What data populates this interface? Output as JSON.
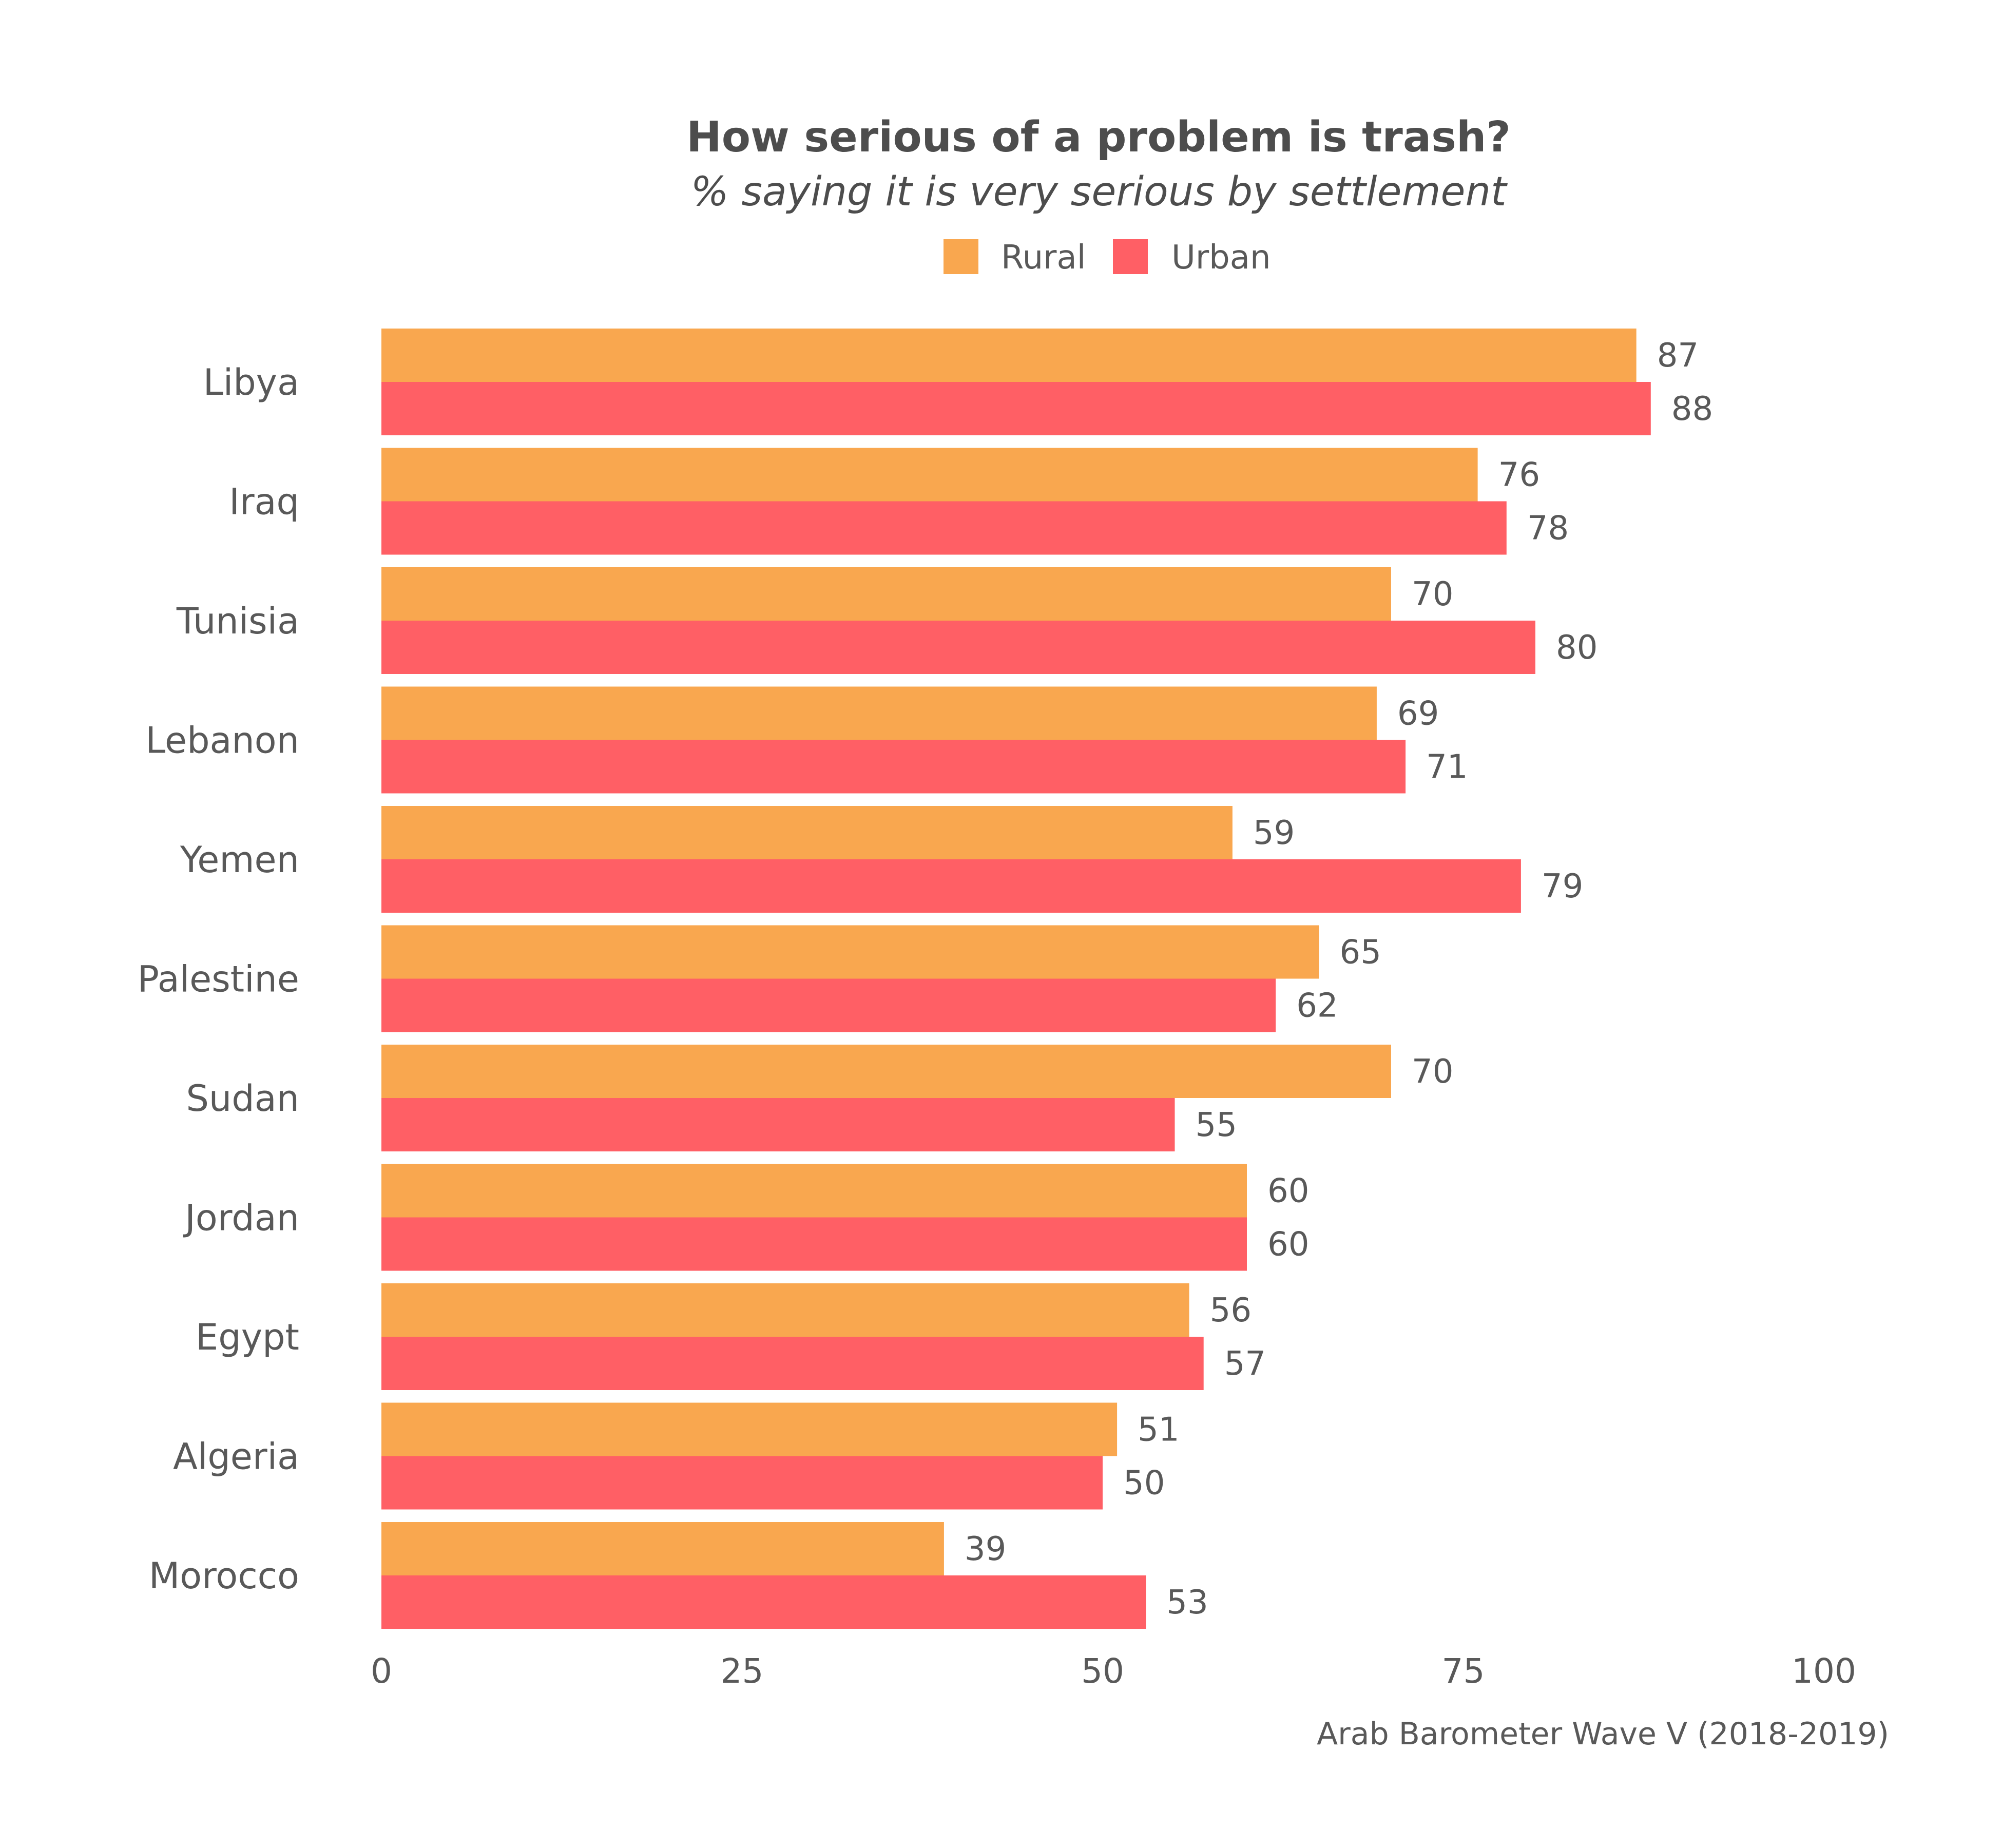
{
  "chart_data": {
    "type": "bar",
    "orientation": "horizontal",
    "title": "How serious of a problem is trash?",
    "subtitle": "% saying it is very serious by settlement",
    "caption": "Arab Barometer Wave V (2018-2019)",
    "categories": [
      "Libya",
      "Iraq",
      "Tunisia",
      "Lebanon",
      "Yemen",
      "Palestine",
      "Sudan",
      "Jordan",
      "Egypt",
      "Algeria",
      "Morocco"
    ],
    "series": [
      {
        "name": "Rural",
        "color": "#F9A74F",
        "values": [
          87,
          76,
          70,
          69,
          59,
          65,
          70,
          60,
          56,
          51,
          39
        ]
      },
      {
        "name": "Urban",
        "color": "#FF5F65",
        "values": [
          88,
          78,
          80,
          71,
          79,
          62,
          55,
          60,
          57,
          50,
          53
        ]
      }
    ],
    "xlim": [
      0,
      100
    ],
    "xticks": [
      "0",
      "25",
      "50",
      "75",
      "100"
    ],
    "legend_position": "top",
    "grid": false
  }
}
